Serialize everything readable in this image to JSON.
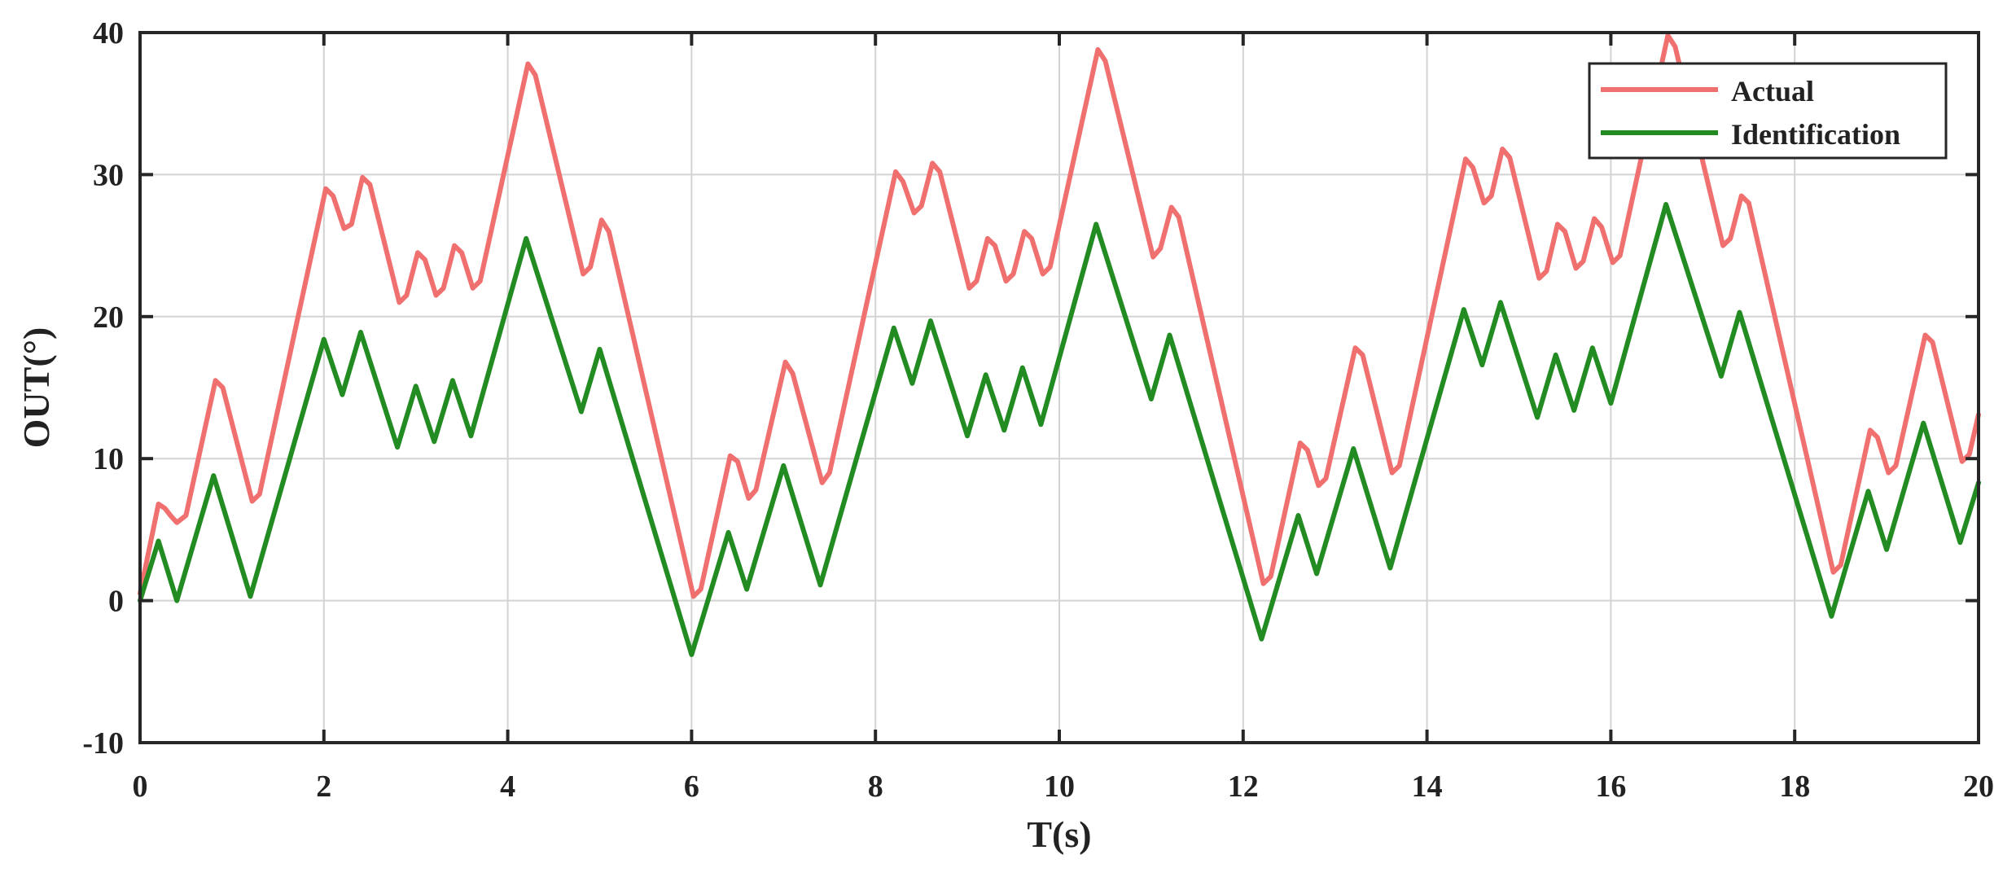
{
  "chart_data": {
    "type": "line",
    "title": "",
    "xlabel": "T(s)",
    "ylabel": "OUT(°)",
    "xlim": [
      0,
      20
    ],
    "ylim": [
      -10,
      40
    ],
    "xticks": [
      0,
      2,
      4,
      6,
      8,
      10,
      12,
      14,
      16,
      18,
      20
    ],
    "yticks": [
      -10,
      0,
      10,
      20,
      30,
      40
    ],
    "grid": true,
    "legend_position": "top-right",
    "series": [
      {
        "name": "Actual",
        "color": "#f07070",
        "x": [
          0,
          0.2,
          0.27,
          0.33,
          0.4,
          0.5,
          0.82,
          0.9,
          1.22,
          1.3,
          2.02,
          2.1,
          2.22,
          2.3,
          2.42,
          2.5,
          2.82,
          2.9,
          3.02,
          3.1,
          3.22,
          3.3,
          3.42,
          3.5,
          3.62,
          3.7,
          4.22,
          4.3,
          4.82,
          4.9,
          5.02,
          5.1,
          6.02,
          6.1,
          6.42,
          6.5,
          6.62,
          6.7,
          7.02,
          7.1,
          7.42,
          7.5,
          8.22,
          8.3,
          8.42,
          8.5,
          8.62,
          8.7,
          9.02,
          9.1,
          9.22,
          9.3,
          9.42,
          9.5,
          9.62,
          9.7,
          9.82,
          9.9,
          10.42,
          10.5,
          11.02,
          11.1,
          11.22,
          11.3,
          12.22,
          12.3,
          12.62,
          12.7,
          12.82,
          12.9,
          13.22,
          13.3,
          13.62,
          13.7,
          14.42,
          14.5,
          14.62,
          14.7,
          14.82,
          14.9,
          15.22,
          15.3,
          15.42,
          15.5,
          15.62,
          15.7,
          15.82,
          15.9,
          16.02,
          16.1,
          16.62,
          16.7,
          17.22,
          17.3,
          17.42,
          17.5,
          18.42,
          18.5,
          18.82,
          18.9,
          19.02,
          19.1,
          19.42,
          19.5,
          19.82,
          19.9,
          20.0
        ],
        "y": [
          0.5,
          6.8,
          6.5,
          6.0,
          5.5,
          6.0,
          15.5,
          15.0,
          7.0,
          7.5,
          29.0,
          28.5,
          26.2,
          26.5,
          29.8,
          29.3,
          21.0,
          21.5,
          24.5,
          24.0,
          21.5,
          22.0,
          25.0,
          24.5,
          22.0,
          22.5,
          37.8,
          37.0,
          23.0,
          23.5,
          26.8,
          26.0,
          0.3,
          0.8,
          10.2,
          9.8,
          7.2,
          7.8,
          16.8,
          16.0,
          8.3,
          9.0,
          30.2,
          29.5,
          27.3,
          27.8,
          30.8,
          30.2,
          22.0,
          22.5,
          25.5,
          25.0,
          22.5,
          23.0,
          26.0,
          25.5,
          23.0,
          23.5,
          38.8,
          38.0,
          24.2,
          24.8,
          27.7,
          27.0,
          1.2,
          1.7,
          11.1,
          10.6,
          8.1,
          8.6,
          17.8,
          17.3,
          9.0,
          9.5,
          31.1,
          30.5,
          28.0,
          28.5,
          31.8,
          31.2,
          22.7,
          23.2,
          26.5,
          26.0,
          23.4,
          23.9,
          26.9,
          26.3,
          23.8,
          24.3,
          39.8,
          39.0,
          25.0,
          25.5,
          28.5,
          28.0,
          2.0,
          2.5,
          12.0,
          11.5,
          9.0,
          9.5,
          18.7,
          18.2,
          9.8,
          10.3,
          13.1
        ]
      },
      {
        "name": "Identification",
        "color": "#228b22",
        "x": [
          0,
          0.2,
          0.4,
          0.8,
          1.2,
          2.0,
          2.2,
          2.4,
          2.8,
          3.0,
          3.2,
          3.4,
          3.6,
          4.2,
          4.8,
          5.0,
          6.0,
          6.4,
          6.6,
          7.0,
          7.4,
          8.2,
          8.4,
          8.6,
          9.0,
          9.2,
          9.4,
          9.6,
          9.8,
          10.4,
          11.0,
          11.2,
          12.2,
          12.6,
          12.8,
          13.2,
          13.6,
          14.4,
          14.6,
          14.8,
          15.2,
          15.4,
          15.6,
          15.8,
          16.0,
          16.6,
          17.2,
          17.4,
          18.4,
          18.8,
          19.0,
          19.4,
          19.8,
          20.0
        ],
        "y": [
          0.0,
          4.2,
          0.0,
          8.8,
          0.3,
          18.4,
          14.5,
          18.9,
          10.8,
          15.1,
          11.2,
          15.5,
          11.6,
          25.5,
          13.3,
          17.7,
          -3.8,
          4.8,
          0.8,
          9.5,
          1.1,
          19.2,
          15.3,
          19.7,
          11.6,
          15.9,
          12.0,
          16.4,
          12.4,
          26.5,
          14.2,
          18.7,
          -2.7,
          6.0,
          1.9,
          10.7,
          2.3,
          20.5,
          16.6,
          21.0,
          12.9,
          17.3,
          13.4,
          17.8,
          13.9,
          27.9,
          15.8,
          20.3,
          -1.1,
          7.7,
          3.6,
          12.5,
          4.1,
          8.3
        ]
      }
    ]
  }
}
